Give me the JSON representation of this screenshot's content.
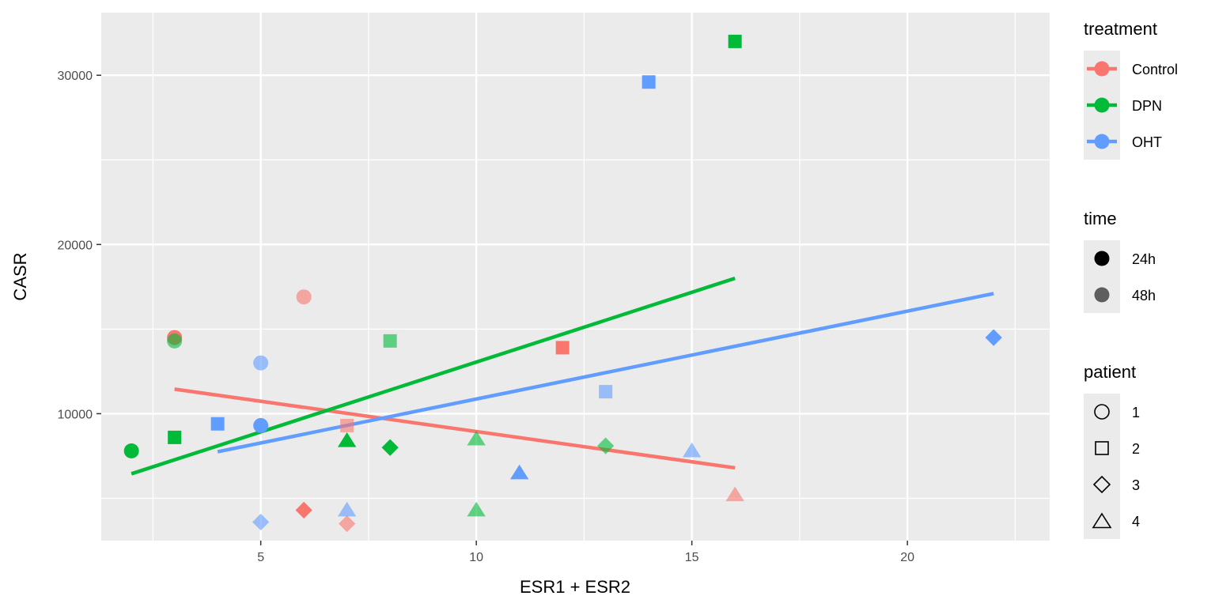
{
  "chart_data": {
    "type": "scatter",
    "xlabel": "ESR1 + ESR2",
    "ylabel": "CASR",
    "xlim": [
      1.3,
      23.3
    ],
    "ylim": [
      2500,
      33700
    ],
    "x_ticks": [
      5,
      10,
      15,
      20
    ],
    "y_ticks": [
      10000,
      20000,
      30000
    ],
    "grid": true,
    "legend_placement": "right",
    "treatment_colors": {
      "Control": "#F8766D",
      "DPN": "#00BA38",
      "OHT": "#619CFF"
    },
    "legends": [
      {
        "title": "treatment",
        "kind": "color",
        "entries": [
          {
            "label": "Control",
            "color": "#F8766D"
          },
          {
            "label": "DPN",
            "color": "#00BA38"
          },
          {
            "label": "OHT",
            "color": "#619CFF"
          }
        ]
      },
      {
        "title": "time",
        "kind": "alpha",
        "entries": [
          {
            "label": "24h",
            "alpha": 1.0
          },
          {
            "label": "48h",
            "alpha": 0.6
          }
        ]
      },
      {
        "title": "patient",
        "kind": "shape",
        "entries": [
          {
            "label": "1",
            "shape": "circle"
          },
          {
            "label": "2",
            "shape": "square"
          },
          {
            "label": "3",
            "shape": "diamond"
          },
          {
            "label": "4",
            "shape": "triangle"
          }
        ]
      }
    ],
    "points": [
      {
        "treatment": "Control",
        "time": "24h",
        "patient": "1",
        "x": 3,
        "y": 14500
      },
      {
        "treatment": "Control",
        "time": "48h",
        "patient": "1",
        "x": 6,
        "y": 16900
      },
      {
        "treatment": "Control",
        "time": "24h",
        "patient": "2",
        "x": 12,
        "y": 13900
      },
      {
        "treatment": "Control",
        "time": "48h",
        "patient": "2",
        "x": 7,
        "y": 9300
      },
      {
        "treatment": "Control",
        "time": "24h",
        "patient": "3",
        "x": 6,
        "y": 4300
      },
      {
        "treatment": "Control",
        "time": "48h",
        "patient": "3",
        "x": 7,
        "y": 3500
      },
      {
        "treatment": "Control",
        "time": "48h",
        "patient": "4",
        "x": 16,
        "y": 5200
      },
      {
        "treatment": "DPN",
        "time": "24h",
        "patient": "1",
        "x": 2,
        "y": 7800
      },
      {
        "treatment": "DPN",
        "time": "48h",
        "patient": "1",
        "x": 3,
        "y": 14300
      },
      {
        "treatment": "DPN",
        "time": "24h",
        "patient": "2",
        "x": 3,
        "y": 8600
      },
      {
        "treatment": "DPN",
        "time": "24h",
        "patient": "2",
        "x": 16,
        "y": 32000
      },
      {
        "treatment": "DPN",
        "time": "48h",
        "patient": "2",
        "x": 8,
        "y": 14300
      },
      {
        "treatment": "DPN",
        "time": "24h",
        "patient": "3",
        "x": 8,
        "y": 8000
      },
      {
        "treatment": "DPN",
        "time": "48h",
        "patient": "3",
        "x": 13,
        "y": 8100
      },
      {
        "treatment": "DPN",
        "time": "24h",
        "patient": "4",
        "x": 7,
        "y": 8400
      },
      {
        "treatment": "DPN",
        "time": "48h",
        "patient": "4",
        "x": 10,
        "y": 8500
      },
      {
        "treatment": "DPN",
        "time": "48h",
        "patient": "4",
        "x": 10,
        "y": 4300
      },
      {
        "treatment": "OHT",
        "time": "24h",
        "patient": "1",
        "x": 5,
        "y": 9300
      },
      {
        "treatment": "OHT",
        "time": "48h",
        "patient": "1",
        "x": 5,
        "y": 13000
      },
      {
        "treatment": "OHT",
        "time": "24h",
        "patient": "2",
        "x": 4,
        "y": 9400
      },
      {
        "treatment": "OHT",
        "time": "24h",
        "patient": "2",
        "x": 14,
        "y": 29600
      },
      {
        "treatment": "OHT",
        "time": "48h",
        "patient": "2",
        "x": 13,
        "y": 11300
      },
      {
        "treatment": "OHT",
        "time": "24h",
        "patient": "3",
        "x": 22,
        "y": 14500
      },
      {
        "treatment": "OHT",
        "time": "48h",
        "patient": "3",
        "x": 5,
        "y": 3600
      },
      {
        "treatment": "OHT",
        "time": "24h",
        "patient": "4",
        "x": 11,
        "y": 6500
      },
      {
        "treatment": "OHT",
        "time": "48h",
        "patient": "4",
        "x": 7,
        "y": 4300
      },
      {
        "treatment": "OHT",
        "time": "48h",
        "patient": "4",
        "x": 15,
        "y": 7800
      }
    ],
    "fit_lines": [
      {
        "treatment": "Control",
        "x": [
          3,
          16
        ],
        "y": [
          11450,
          6800
        ]
      },
      {
        "treatment": "DPN",
        "x": [
          2,
          16
        ],
        "y": [
          6450,
          18000
        ]
      },
      {
        "treatment": "OHT",
        "x": [
          4,
          22
        ],
        "y": [
          7750,
          17100
        ]
      }
    ]
  }
}
